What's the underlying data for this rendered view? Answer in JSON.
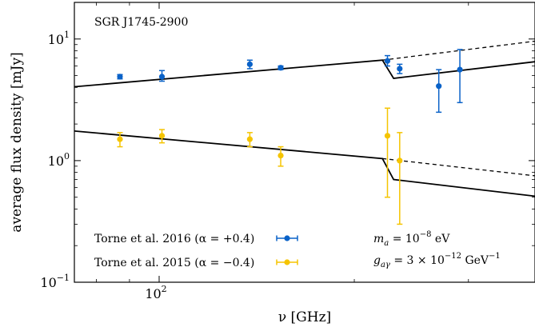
{
  "chart_data": {
    "type": "scatter",
    "source_label": "SGR J1745-2900",
    "xlabel": "ν [GHz]",
    "ylabel": "average flux density [mJy]",
    "xscale": "log",
    "yscale": "log",
    "xlim": [
      74,
      380
    ],
    "ylim": [
      0.1,
      20
    ],
    "x_ticks": [
      {
        "value": 100,
        "base": "10",
        "exp": "2"
      }
    ],
    "y_ticks": [
      {
        "value": 0.1,
        "base": "10",
        "exp": "−1"
      },
      {
        "value": 1,
        "base": "10",
        "exp": "0"
      },
      {
        "value": 10,
        "base": "10",
        "exp": "1"
      }
    ],
    "legend_position": "bottom-left",
    "series": [
      {
        "name": "Torne et al. 2016 (α = +0.4)",
        "color": "#0a62c8",
        "points": [
          {
            "x": 87,
            "y": 4.9,
            "ylo": 4.7,
            "yhi": 5.1
          },
          {
            "x": 101,
            "y": 4.9,
            "ylo": 4.5,
            "yhi": 5.5
          },
          {
            "x": 138,
            "y": 6.2,
            "ylo": 5.7,
            "yhi": 6.7
          },
          {
            "x": 154,
            "y": 5.8,
            "ylo": 5.6,
            "yhi": 6.0
          },
          {
            "x": 225,
            "y": 6.6,
            "ylo": 6.0,
            "yhi": 7.3
          },
          {
            "x": 235,
            "y": 5.7,
            "ylo": 5.2,
            "yhi": 6.2
          },
          {
            "x": 270,
            "y": 4.1,
            "ylo": 2.5,
            "yhi": 5.6
          },
          {
            "x": 291,
            "y": 5.6,
            "ylo": 3.0,
            "yhi": 8.2
          }
        ]
      },
      {
        "name": "Torne et al. 2015 (α = −0.4)",
        "color": "#f5c400",
        "points": [
          {
            "x": 87,
            "y": 1.5,
            "ylo": 1.3,
            "yhi": 1.7
          },
          {
            "x": 101,
            "y": 1.6,
            "ylo": 1.4,
            "yhi": 1.8
          },
          {
            "x": 138,
            "y": 1.5,
            "ylo": 1.3,
            "yhi": 1.7
          },
          {
            "x": 154,
            "y": 1.1,
            "ylo": 0.9,
            "yhi": 1.3
          },
          {
            "x": 225,
            "y": 1.6,
            "ylo": 0.5,
            "yhi": 2.7
          },
          {
            "x": 235,
            "y": 1.0,
            "ylo": 0.3,
            "yhi": 1.7
          }
        ]
      }
    ],
    "model_lines": [
      {
        "style": "solid",
        "x": [
          74,
          221,
          230,
          380
        ],
        "y": [
          4.05,
          6.7,
          4.75,
          6.5
        ]
      },
      {
        "style": "dashed",
        "x": [
          221,
          380
        ],
        "y": [
          6.7,
          9.6
        ]
      },
      {
        "style": "solid",
        "x": [
          74,
          221,
          230,
          380
        ],
        "y": [
          1.75,
          1.04,
          0.7,
          0.51
        ]
      },
      {
        "style": "dashed",
        "x": [
          221,
          380
        ],
        "y": [
          1.04,
          0.75
        ]
      }
    ],
    "annotations": [
      {
        "label": "m",
        "sub": "a",
        "rest": " = 10",
        "sup": "−8",
        "unit": " eV"
      },
      {
        "label": "g",
        "sub": "aγ",
        "rest": " = 3 × 10",
        "sup": "−12",
        "unit": " GeV",
        "unit_sup": "−1"
      }
    ]
  }
}
